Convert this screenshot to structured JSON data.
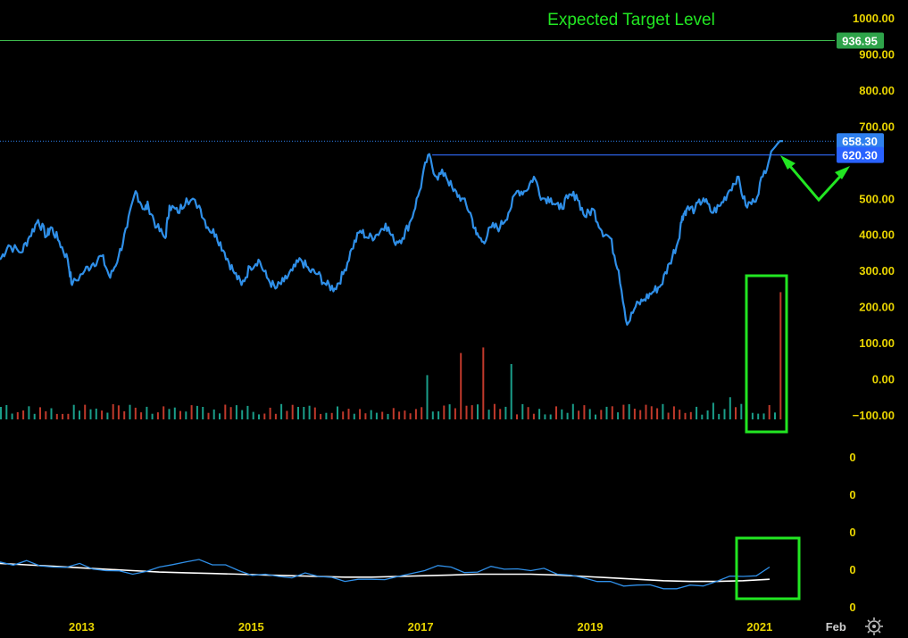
{
  "colors": {
    "background": "#000000",
    "price_line": "#2f8fe8",
    "axis_text": "#e8d400",
    "annotation_green": "#22e622",
    "target_line": "#3fbf4f",
    "target_badge": "#2ea34a",
    "resistance_line": "#2b5fe0",
    "current_badge": "#2f80ed",
    "resistance_badge": "#2962ff",
    "volume_up": "#1a9e8a",
    "volume_down": "#c0392b",
    "indicator_line": "#2f8fe8",
    "indicator_ma": "#ffffff"
  },
  "annotation": {
    "title": "Expected Target Level"
  },
  "chart_data": {
    "type": "line",
    "price_axis": {
      "ticks": [
        1000,
        900,
        800,
        700,
        500,
        400,
        300,
        200,
        100,
        0,
        -100
      ],
      "tick_labels": [
        "1000.00",
        "900.00",
        "800.00",
        "700.00",
        "500.00",
        "400.00",
        "300.00",
        "200.00",
        "100.00",
        "0.00",
        "−100.00"
      ],
      "ylim": [
        -100,
        1000
      ]
    },
    "indicator_axis": {
      "tick_labels": [
        "0",
        "0",
        "0",
        "0",
        "0"
      ]
    },
    "x_axis": {
      "tick_labels": [
        "2013",
        "2015",
        "2017",
        "2019",
        "2021",
        "Feb"
      ],
      "tick_years": [
        2013,
        2015,
        2017,
        2019,
        2021,
        2021.9
      ],
      "xlim": [
        2012.1,
        2021.95
      ]
    },
    "levels": {
      "target": {
        "value": 936.95,
        "label": "936.95"
      },
      "current": {
        "value": 658.3,
        "label": "658.30"
      },
      "resistance": {
        "value": 620.3,
        "label": "620.30",
        "start_year": 2017.2
      }
    },
    "series": [
      {
        "x": [
          2012.1,
          2012.2,
          2012.35,
          2012.45,
          2012.55,
          2012.65,
          2012.7,
          2012.8,
          2012.9,
          2012.95,
          2013.1,
          2013.2,
          2013.3,
          2013.4,
          2013.5,
          2013.6,
          2013.7,
          2013.8,
          2013.85,
          2013.95,
          2014.05,
          2014.1,
          2014.2,
          2014.3,
          2014.45,
          2014.55,
          2014.65,
          2014.75,
          2014.85,
          2014.95,
          2015.05,
          2015.15,
          2015.25,
          2015.35,
          2015.45,
          2015.55,
          2015.65,
          2015.75,
          2015.85,
          2015.95,
          2016.05,
          2016.15,
          2016.25,
          2016.35,
          2016.45,
          2016.55,
          2016.65,
          2016.75,
          2016.85,
          2016.95,
          2017.05,
          2017.15,
          2017.25,
          2017.35,
          2017.45,
          2017.55,
          2017.65,
          2017.72,
          2017.8,
          2017.9,
          2018.0,
          2018.1,
          2018.2,
          2018.3,
          2018.4,
          2018.5,
          2018.6,
          2018.7,
          2018.8,
          2018.9,
          2019.0,
          2019.1,
          2019.2,
          2019.3,
          2019.4,
          2019.5,
          2019.6,
          2019.7,
          2019.8,
          2019.9,
          2020.0,
          2020.1,
          2020.15,
          2020.2,
          2020.3,
          2020.4,
          2020.5,
          2020.6,
          2020.7,
          2020.8,
          2020.9,
          2021.0,
          2021.1,
          2021.2,
          2021.3,
          2021.32,
          2021.34
        ],
        "values": [
          330,
          370,
          350,
          395,
          440,
          395,
          420,
          380,
          330,
          260,
          300,
          320,
          340,
          280,
          340,
          420,
          520,
          470,
          480,
          420,
          390,
          480,
          460,
          500,
          480,
          420,
          400,
          350,
          300,
          260,
          310,
          330,
          280,
          250,
          270,
          300,
          330,
          300,
          290,
          260,
          250,
          290,
          360,
          410,
          390,
          400,
          430,
          380,
          390,
          440,
          520,
          620,
          560,
          570,
          520,
          500,
          460,
          400,
          380,
          420,
          420,
          460,
          520,
          520,
          560,
          500,
          500,
          470,
          500,
          510,
          450,
          470,
          410,
          390,
          300,
          150,
          200,
          220,
          240,
          260,
          320,
          380,
          450,
          470,
          470,
          500,
          460,
          480,
          520,
          560,
          480,
          490,
          560,
          630,
          658.3,
          658.3,
          658.3
        ]
      }
    ],
    "volume_bars": {
      "count": 140,
      "highlights": [
        {
          "x": 2017.1,
          "value": 80
        },
        {
          "x": 2017.5,
          "value": 120
        },
        {
          "x": 2017.8,
          "value": 130
        },
        {
          "x": 2018.1,
          "value": 100
        },
        {
          "x": 2020.5,
          "value": 30
        },
        {
          "x": 2020.7,
          "value": 40
        },
        {
          "x": 2021.3,
          "value": 230
        }
      ]
    },
    "indicator": {
      "line": [
        0.62,
        0.64,
        0.55,
        0.6,
        0.5,
        0.45,
        0.55,
        0.62,
        0.58,
        0.5,
        0.45,
        0.4,
        0.42,
        0.35,
        0.38,
        0.42,
        0.5,
        0.55,
        0.48,
        0.52,
        0.5,
        0.45,
        0.4,
        0.35,
        0.3,
        0.25,
        0.3,
        0.35,
        0.42,
        0.55
      ],
      "ma": [
        0.6,
        0.58,
        0.56,
        0.54,
        0.52,
        0.5,
        0.48,
        0.47,
        0.46,
        0.45,
        0.44,
        0.43,
        0.42,
        0.41,
        0.41,
        0.42,
        0.43,
        0.44,
        0.45,
        0.45,
        0.45,
        0.44,
        0.42,
        0.4,
        0.38,
        0.36,
        0.35,
        0.35,
        0.36,
        0.38
      ]
    }
  }
}
